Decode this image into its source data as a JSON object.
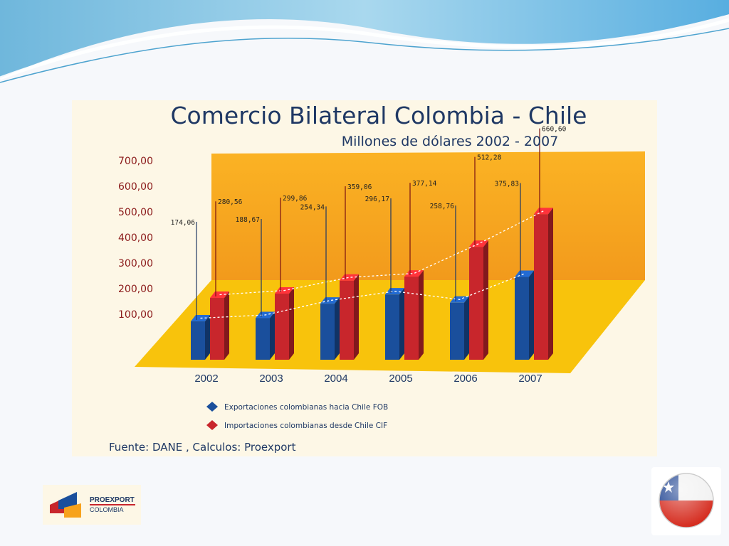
{
  "slide": {
    "logo_text_1": "PROEXPORT",
    "logo_text_2": "COLOMBIA",
    "flag": "chile-flag-icon"
  },
  "chart_data": {
    "type": "bar",
    "title": "Comercio Bilateral Colombia - Chile",
    "subtitle": "Millones de dólares 2002 - 2007",
    "source": "Fuente: DANE , Calculos: Proexport",
    "categories": [
      "2002",
      "2003",
      "2004",
      "2005",
      "2006",
      "2007"
    ],
    "y_ticks": [
      "700,00",
      "600,00",
      "500,00",
      "400,00",
      "300,00",
      "200,00",
      "100,00"
    ],
    "ylim": [
      0,
      700
    ],
    "series": [
      {
        "name": "Exportaciones colombianas hacia Chile FOB",
        "color": "#1a4f9c",
        "values": [
          174.06,
          188.67,
          254.34,
          296.17,
          258.76,
          375.83
        ],
        "labels": [
          "174,06",
          "188,67",
          "254,34",
          "296,17",
          "258,76",
          "375,83"
        ]
      },
      {
        "name": "Importaciones colombianas desde Chile CIF",
        "color": "#c8262c",
        "values": [
          280.56,
          299.86,
          359.06,
          377.14,
          512.28,
          660.6
        ],
        "labels": [
          "280,56",
          "299,86",
          "359,06",
          "377,14",
          "512,28",
          "660,60"
        ]
      }
    ],
    "legend_position": "bottom-left",
    "colors": {
      "floor": "#f8c30c",
      "wall": "#f7a21c",
      "axis_text": "#8b1a1a",
      "title": "#1f3864"
    }
  }
}
